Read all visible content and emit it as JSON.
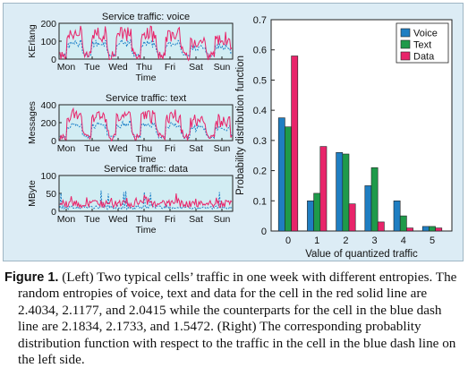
{
  "chart_data": [
    {
      "type": "line",
      "title": "Service traffic: voice",
      "xlabel": "Time",
      "ylabel": "KErlang",
      "x_ticks": [
        "Mon",
        "Tue",
        "Wed",
        "Thu",
        "Fri",
        "Sat",
        "Sun"
      ],
      "y_ticks": [
        "0",
        "100",
        "200"
      ],
      "ylim": [
        0,
        200
      ],
      "series": [],
      "style": {
        "red_color": "#e8246a",
        "blue_color": "#1c80c8",
        "axes_bg": "#d2edf3"
      }
    },
    {
      "type": "line",
      "title": "Service traffic: text",
      "xlabel": "Time",
      "ylabel": "Messages",
      "x_ticks": [
        "Mon",
        "Tue",
        "Wed",
        "Thu",
        "Fri",
        "Sat",
        "Sun"
      ],
      "y_ticks": [
        "0",
        "200",
        "400"
      ],
      "ylim": [
        0,
        400
      ],
      "series": [],
      "style": {
        "red_color": "#e8246a",
        "blue_color": "#1c80c8",
        "axes_bg": "#d2edf3"
      }
    },
    {
      "type": "line",
      "title": "Service traffic: data",
      "xlabel": "Time",
      "ylabel": "MByte",
      "x_ticks": [
        "Mon",
        "Tue",
        "Wed",
        "Thu",
        "Fri",
        "Sat",
        "Sun"
      ],
      "y_ticks": [
        "0",
        "50",
        "100"
      ],
      "ylim": [
        0,
        100
      ],
      "series": [],
      "style": {
        "red_color": "#e8246a",
        "blue_color": "#1c80c8",
        "axes_bg": "#d2edf3"
      }
    },
    {
      "type": "bar",
      "title": "",
      "xlabel": "Value of quantized traffic",
      "ylabel": "Probability distribution function",
      "categories": [
        "0",
        "1",
        "2",
        "3",
        "4",
        "5"
      ],
      "ylim": [
        0,
        0.7
      ],
      "y_ticks": [
        "0",
        "0.1",
        "0.2",
        "0.3",
        "0.4",
        "0.5",
        "0.6",
        "0.7"
      ],
      "legend_position": "top-right",
      "series": [
        {
          "name": "Voice",
          "color": "#1f7ec2",
          "values": [
            0.375,
            0.1,
            0.26,
            0.15,
            0.1,
            0.015
          ]
        },
        {
          "name": "Text",
          "color": "#1f9a4a",
          "values": [
            0.345,
            0.125,
            0.255,
            0.21,
            0.05,
            0.015
          ]
        },
        {
          "name": "Data",
          "color": "#e8246a",
          "values": [
            0.58,
            0.28,
            0.09,
            0.03,
            0.01,
            0.01
          ]
        }
      ]
    }
  ],
  "caption": {
    "label": "Figure 1.",
    "text": "(Left) Two typical cells’ traffic in one week with different entropies. The random entropies of voice, text and data for the cell in the red solid line are 2.4034, 2.1177, and 2.0415 while the counterparts for the cell in the blue dash line are 2.1834, 2.1733, and 1.5472. (Right) The corresponding probablity distribution function with respect to the traffic in the cell in the blue dash line on the left side."
  }
}
